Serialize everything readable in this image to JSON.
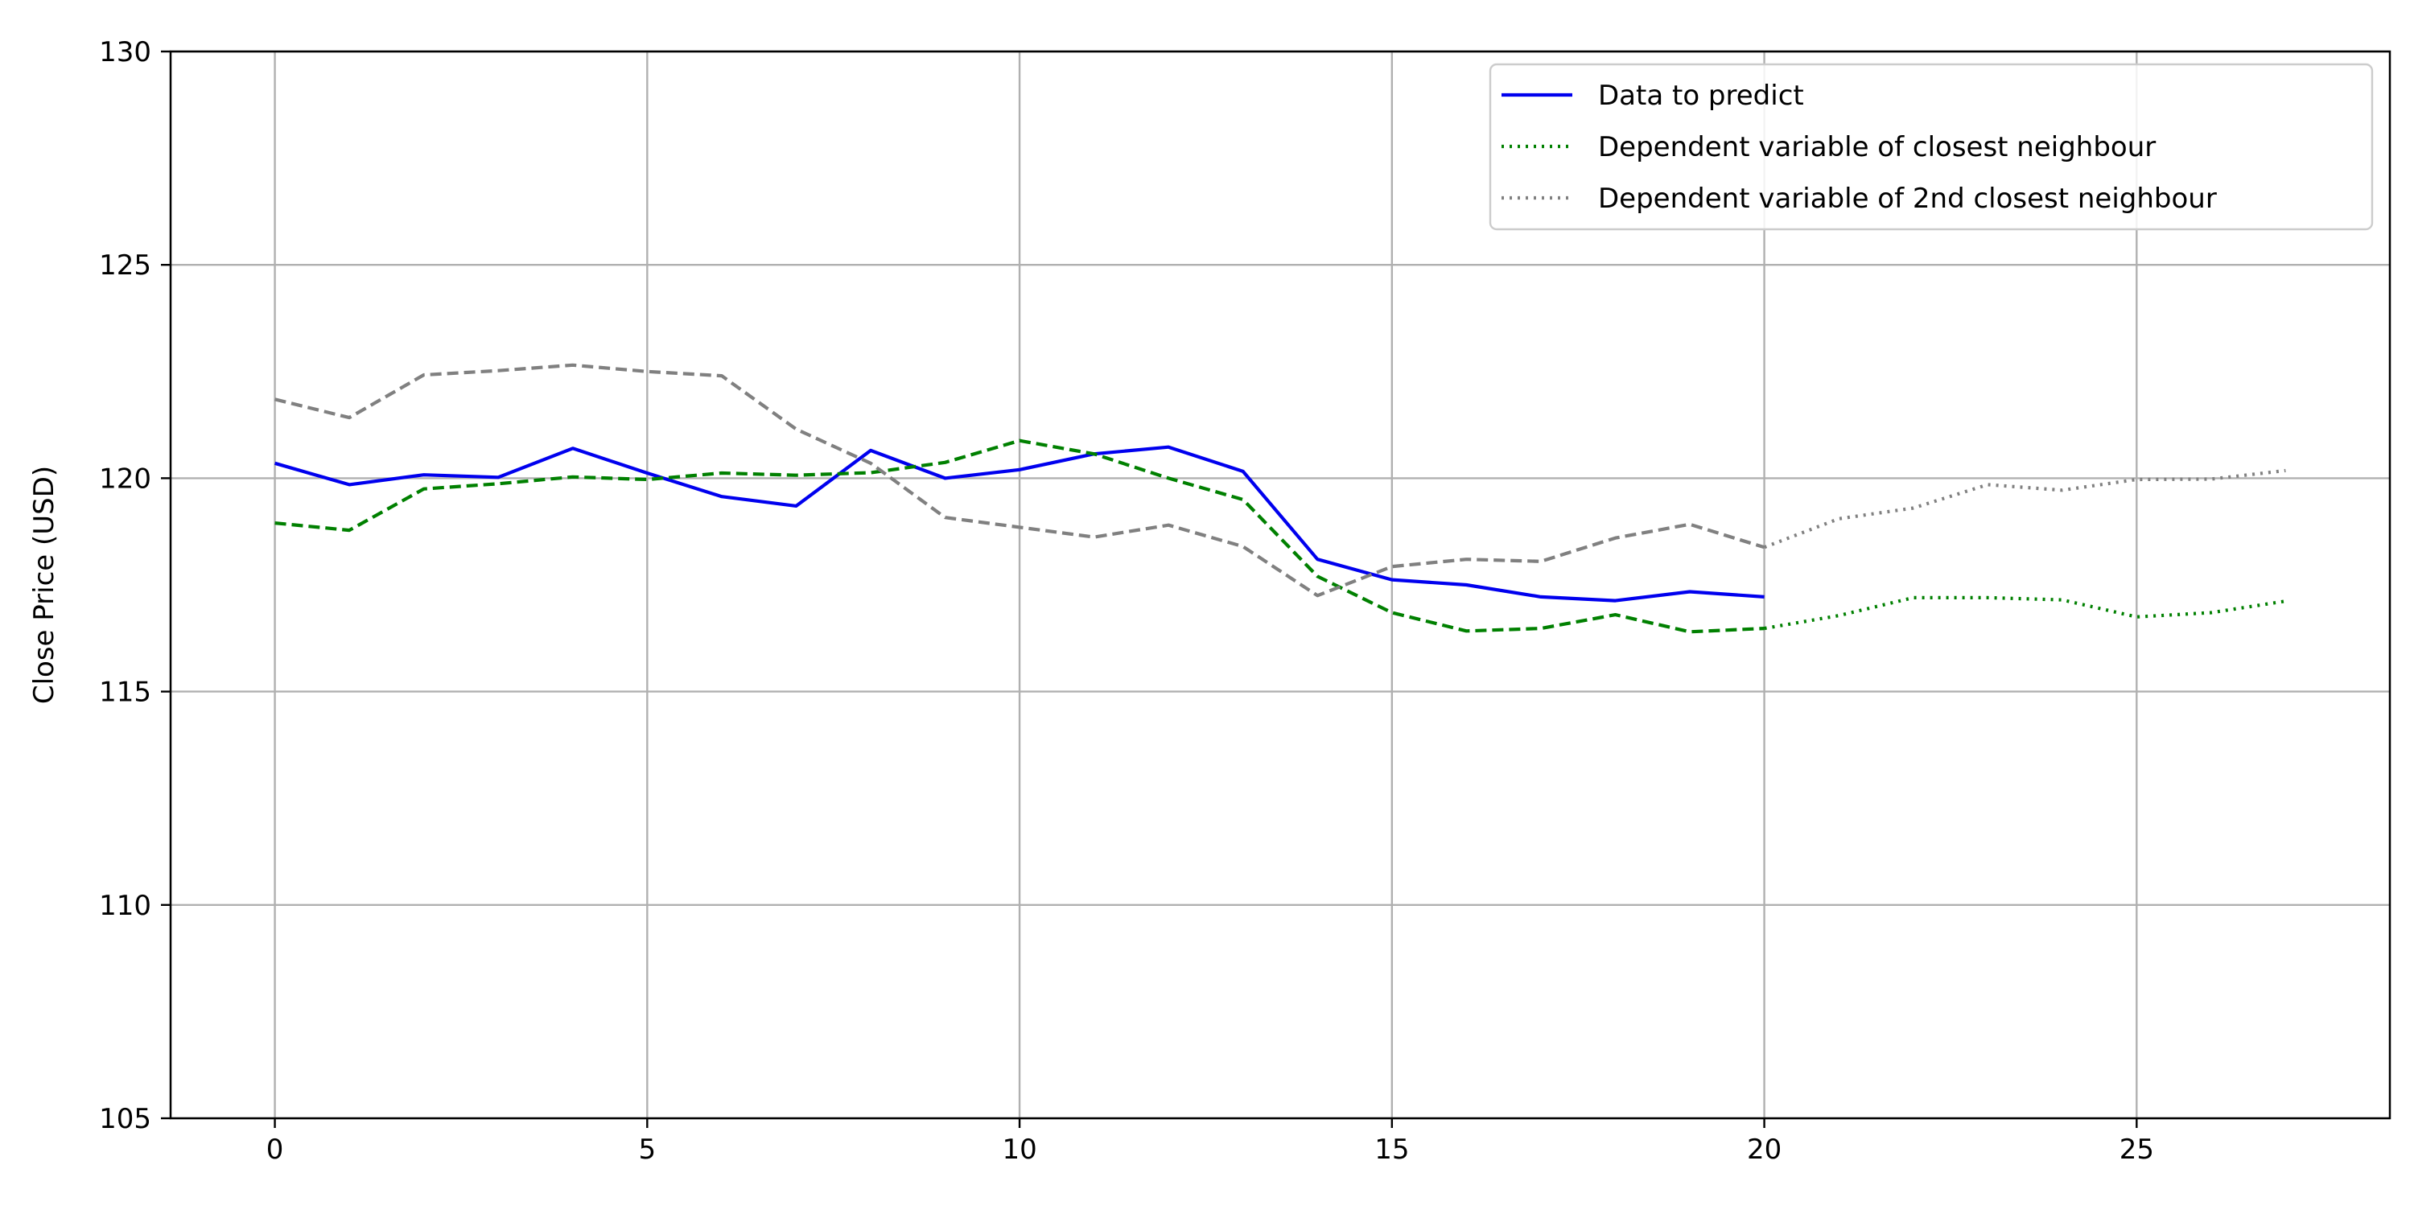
{
  "chart_data": {
    "type": "line",
    "title": "",
    "xlabel": "",
    "ylabel": "Close Price (USD)",
    "xlim": [
      -1.4,
      28.4
    ],
    "ylim": [
      105,
      130
    ],
    "x_ticks": [
      0,
      5,
      10,
      15,
      20,
      25
    ],
    "y_ticks": [
      105,
      110,
      115,
      120,
      125,
      130
    ],
    "grid": true,
    "legend_position": "top-right",
    "series": [
      {
        "name": "Data to predict",
        "color": "#0000ee",
        "style": "solid",
        "x": [
          0,
          1,
          2,
          3,
          4,
          5,
          6,
          7,
          8,
          9,
          10,
          11,
          12,
          13,
          14,
          15,
          16,
          17,
          18,
          19,
          20
        ],
        "y": [
          120.35,
          119.85,
          120.08,
          120.02,
          120.7,
          120.12,
          119.57,
          119.35,
          120.65,
          120.0,
          120.2,
          120.57,
          120.73,
          120.16,
          118.1,
          117.62,
          117.5,
          117.22,
          117.13,
          117.34,
          117.22
        ]
      },
      {
        "name": "",
        "color": "#008000",
        "style": "dashed",
        "x": [
          0,
          1,
          2,
          3,
          4,
          5,
          6,
          7,
          8,
          9,
          10,
          11,
          12,
          13,
          14,
          15,
          16,
          17,
          18,
          19,
          20
        ],
        "y": [
          118.95,
          118.78,
          119.75,
          119.87,
          120.03,
          119.97,
          120.12,
          120.07,
          120.13,
          120.37,
          120.88,
          120.57,
          120.0,
          119.5,
          117.7,
          116.85,
          116.42,
          116.48,
          116.8,
          116.4,
          116.48
        ]
      },
      {
        "name": "Dependent variable of closest neighbour",
        "color": "#008000",
        "style": "dotted",
        "x": [
          20,
          21,
          22,
          23,
          24,
          25,
          26,
          27
        ],
        "y": [
          116.48,
          116.78,
          117.2,
          117.2,
          117.15,
          116.75,
          116.85,
          117.12
        ]
      },
      {
        "name": "",
        "color": "#808080",
        "style": "dashed",
        "x": [
          0,
          1,
          2,
          3,
          4,
          5,
          6,
          7,
          8,
          9,
          10,
          11,
          12,
          13,
          14,
          15,
          16,
          17,
          18,
          19,
          20
        ],
        "y": [
          121.85,
          121.42,
          122.42,
          122.52,
          122.65,
          122.5,
          122.4,
          121.15,
          120.35,
          119.08,
          118.85,
          118.62,
          118.9,
          118.4,
          117.25,
          117.93,
          118.1,
          118.05,
          118.6,
          118.92,
          118.38
        ]
      },
      {
        "name": "Dependent variable of 2nd closest neighbour",
        "color": "#808080",
        "style": "dotted",
        "x": [
          20,
          21,
          22,
          23,
          24,
          25,
          26,
          27
        ],
        "y": [
          118.38,
          119.05,
          119.3,
          119.85,
          119.72,
          119.97,
          119.98,
          120.18
        ]
      }
    ],
    "legend": [
      {
        "label": "Data to predict",
        "color": "#0000ee",
        "style": "solid"
      },
      {
        "label": "Dependent variable of closest neighbour",
        "color": "#008000",
        "style": "dotted"
      },
      {
        "label": "Dependent variable of 2nd closest neighbour",
        "color": "#808080",
        "style": "dotted"
      }
    ]
  }
}
